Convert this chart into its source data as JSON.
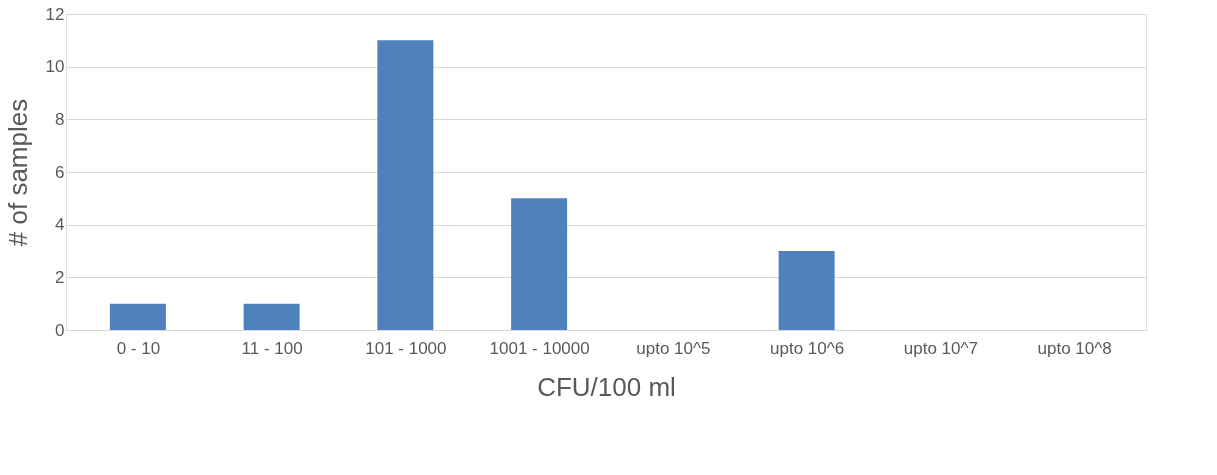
{
  "chart_data": {
    "type": "bar",
    "xlabel": "CFU/100 ml",
    "ylabel": "# of samples",
    "categories": [
      "0 - 10",
      "11 - 100",
      "101 - 1000",
      "1001 - 10000",
      "upto 10^5",
      "upto 10^6",
      "upto 10^7",
      "upto 10^8"
    ],
    "values": [
      1,
      1,
      11,
      5,
      0,
      3,
      0,
      0
    ],
    "color": "#4f81bd",
    "ylim": [
      0,
      12
    ],
    "yticks": [
      0,
      2,
      4,
      6,
      8,
      10,
      12
    ],
    "grid": "y"
  }
}
